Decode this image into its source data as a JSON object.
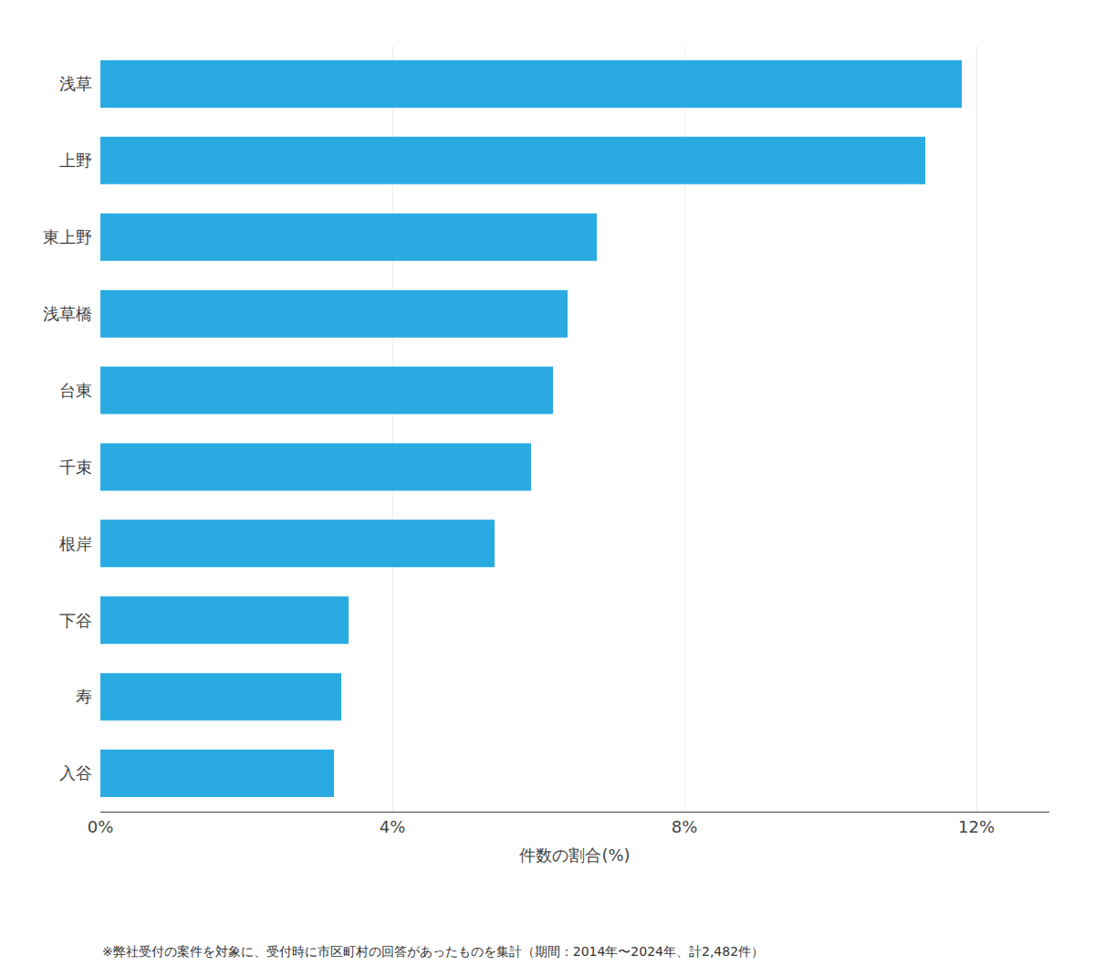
{
  "chart_data": {
    "type": "bar",
    "orientation": "horizontal",
    "categories": [
      "浅草",
      "上野",
      "東上野",
      "浅草橋",
      "台東",
      "千束",
      "根岸",
      "下谷",
      "寿",
      "入谷"
    ],
    "values": [
      11.8,
      11.3,
      6.8,
      6.4,
      6.2,
      5.9,
      5.4,
      3.4,
      3.3,
      3.2
    ],
    "color": "#29ABE2",
    "xlabel": "件数の割合(%)",
    "xlim": [
      0,
      13
    ],
    "xticks": [
      {
        "value": 0,
        "label": "0%"
      },
      {
        "value": 4,
        "label": "4%"
      },
      {
        "value": 8,
        "label": "8%"
      },
      {
        "value": 12,
        "label": "12%"
      }
    ],
    "grid": true,
    "annotations": [
      "※弊社受付の案件を対象に、受付時に市区町村の回答があったものを集計（期間：2014年〜2024年、計2,482件）"
    ]
  }
}
